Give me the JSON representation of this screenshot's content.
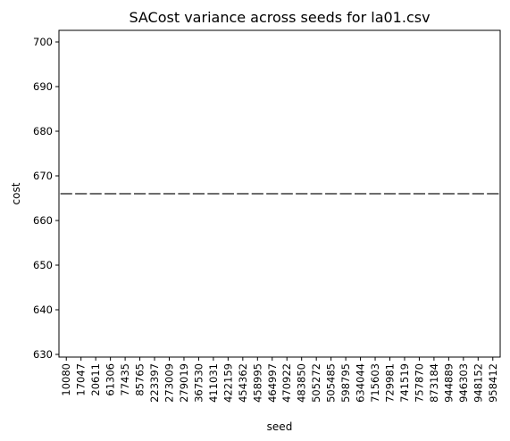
{
  "chart_data": {
    "type": "box",
    "title": "SACost variance across seeds for la01.csv",
    "xlabel": "seed",
    "ylabel": "cost",
    "ylim": [
      629.4,
      702.6
    ],
    "yticks": [
      630,
      640,
      650,
      660,
      670,
      680,
      690,
      700
    ],
    "categories": [
      "10080",
      "17047",
      "20611",
      "61306",
      "77435",
      "85765",
      "223397",
      "273009",
      "279019",
      "367530",
      "411031",
      "422159",
      "454362",
      "458995",
      "464997",
      "470922",
      "483850",
      "505272",
      "505485",
      "598795",
      "634044",
      "715603",
      "729981",
      "741519",
      "757870",
      "873184",
      "944889",
      "946303",
      "948152",
      "958412"
    ],
    "values": [
      666,
      666,
      666,
      666,
      666,
      666,
      666,
      666,
      666,
      666,
      666,
      666,
      666,
      666,
      666,
      666,
      666,
      666,
      666,
      666,
      666,
      666,
      666,
      666,
      666,
      666,
      666,
      666,
      666,
      666
    ],
    "grid": false,
    "legend": "none",
    "colors": {
      "box_line": "#474747",
      "axis": "#000000"
    }
  }
}
